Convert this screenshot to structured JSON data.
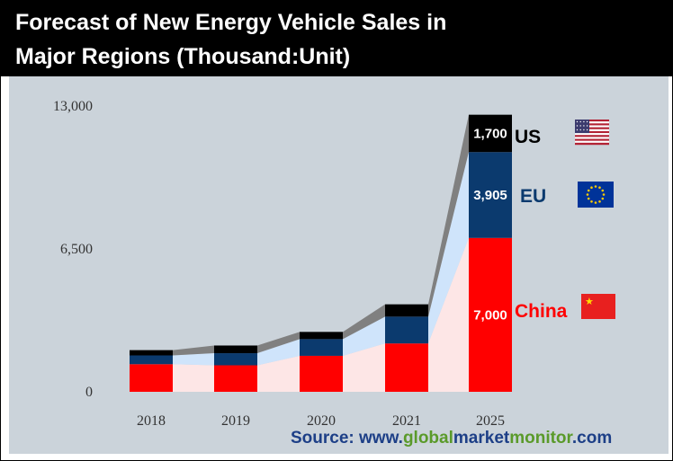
{
  "title": {
    "line1": "Forecast of New Energy Vehicle Sales in",
    "line2": "Major Regions  (Thousand:Unit)"
  },
  "source": {
    "prefix": "Source: www.",
    "part1": "global",
    "part2": "market",
    "part3": "monitor",
    "suffix": ".com"
  },
  "colors": {
    "china": "#ff0000",
    "eu": "#0b3a6e",
    "us": "#000000",
    "china_area": "#fde6e6",
    "eu_area": "#cfe4fb",
    "us_area": "#808080",
    "panel": "#cbd3da",
    "source_blue": "#1d3f87",
    "source_green": "#5a9a2a"
  },
  "chart_data": {
    "type": "bar",
    "stacked": true,
    "categories": [
      "2018",
      "2019",
      "2020",
      "2021",
      "2025"
    ],
    "series": [
      {
        "name": "China",
        "values": [
          1256,
          1206,
          1637,
          2200,
          7000
        ]
      },
      {
        "name": "EU",
        "values": [
          400,
          550,
          760,
          1220,
          3905
        ]
      },
      {
        "name": "US",
        "values": [
          240,
          350,
          328,
          560,
          1700
        ]
      }
    ],
    "data_labels": [
      "7,000",
      "3,905",
      "1,700"
    ],
    "y_ticks": [
      "0",
      "6,500",
      "13,000"
    ],
    "ylim": [
      0,
      13000
    ],
    "grid": false,
    "legend": "right, labels with flag icons",
    "region_labels": [
      "China",
      "EU",
      "US"
    ],
    "flag_icons": [
      "china-flag-icon",
      "eu-flag-icon",
      "us-flag-icon"
    ]
  }
}
